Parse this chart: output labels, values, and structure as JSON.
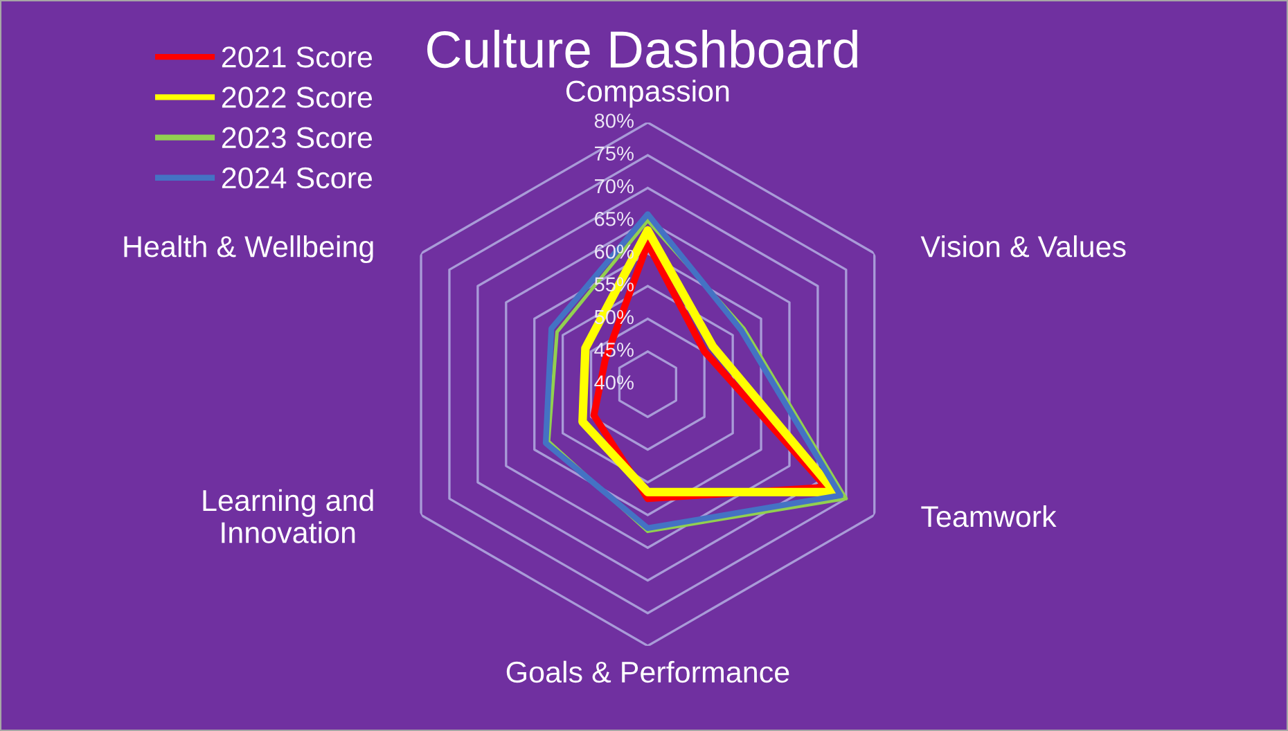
{
  "chart_data": {
    "type": "radar",
    "title": "Culture Dashboard",
    "categories": [
      "Compassion",
      "Vision & Values",
      "Teamwork",
      "Goals & Performance",
      "Learning and Innovation",
      "Health & Wellbeing"
    ],
    "series": [
      {
        "name": "2021 Score",
        "color": "#ff0000",
        "values": [
          61.5,
          50,
          71.5,
          57.5,
          49.5,
          47.5
        ]
      },
      {
        "name": "2022 Score",
        "color": "#ffff00",
        "values": [
          63.5,
          51.5,
          73,
          56.5,
          51.5,
          51
        ]
      },
      {
        "name": "2023 Score",
        "color": "#92d050",
        "values": [
          65,
          57,
          75,
          62.5,
          57.5,
          56
        ]
      },
      {
        "name": "2024 Score",
        "color": "#4472c4",
        "values": [
          66,
          56.5,
          74,
          62,
          58,
          57
        ]
      }
    ],
    "ylim": [
      40,
      80
    ],
    "yticks": [
      {
        "value": 40,
        "label": "40%"
      },
      {
        "value": 45,
        "label": "45%"
      },
      {
        "value": 50,
        "label": "50%"
      },
      {
        "value": 55,
        "label": "55%"
      },
      {
        "value": 60,
        "label": "60%"
      },
      {
        "value": 65,
        "label": "65%"
      },
      {
        "value": 70,
        "label": "70%"
      },
      {
        "value": 75,
        "label": "75%"
      },
      {
        "value": 80,
        "label": "80%"
      }
    ],
    "grid": true,
    "legend": "top left"
  }
}
